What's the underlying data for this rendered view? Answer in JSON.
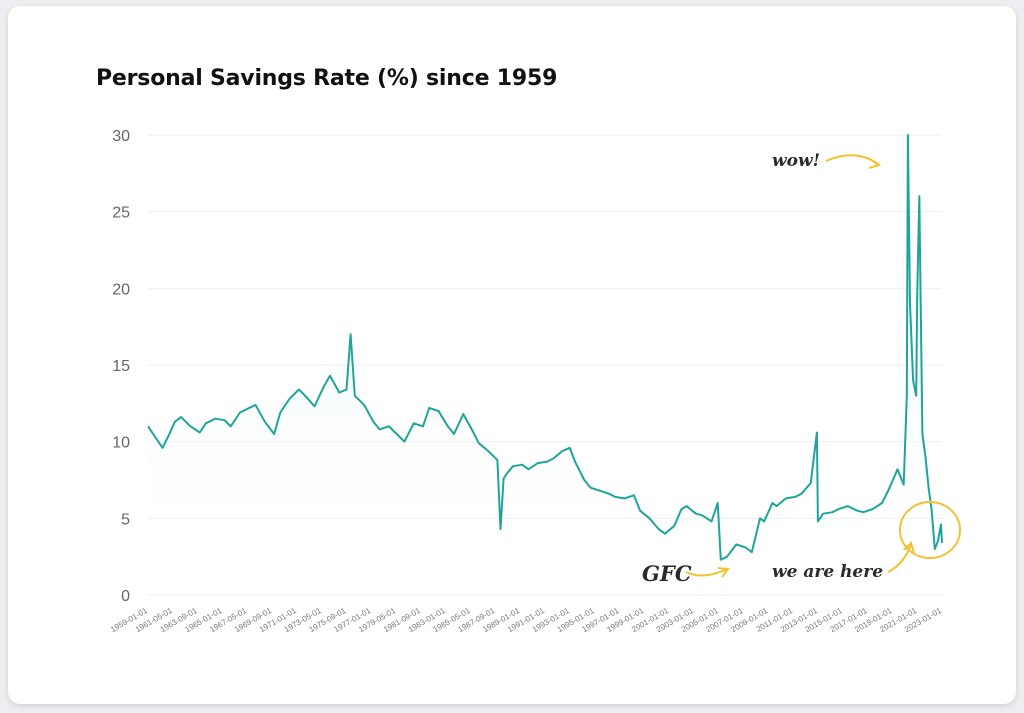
{
  "title": "Personal Savings Rate (%) since 1959",
  "annotations": {
    "peak": "wow!",
    "gfc": "GFC",
    "now": "we are here"
  },
  "colors": {
    "line": "#1fa598",
    "fill_top": "#e0f3f1",
    "grid": "#eeeeee",
    "annotation_arrow": "#f2c233"
  },
  "chart_data": {
    "type": "line",
    "title": "Personal Savings Rate (%) since 1959",
    "xlabel": "",
    "ylabel": "",
    "ylim": [
      0,
      30
    ],
    "yticks": [
      0,
      5,
      10,
      15,
      20,
      25,
      30
    ],
    "xlim": [
      "1959-01-01",
      "2023-01-01"
    ],
    "xtick_labels": [
      "1959-01-01",
      "1961-05-01",
      "1963-09-01",
      "1965-01-01",
      "1967-05-01",
      "1969-09-01",
      "1971-01-01",
      "1973-05-01",
      "1975-09-01",
      "1977-01-01",
      "1979-05-01",
      "1981-09-01",
      "1983-01-01",
      "1985-05-01",
      "1987-09-01",
      "1989-01-01",
      "1991-01-01",
      "1993-01-01",
      "1995-01-01",
      "1997-01-01",
      "1999-01-01",
      "2001-01-01",
      "2003-01-01",
      "2005-01-01",
      "2007-01-01",
      "2009-01-01",
      "2011-01-01",
      "2013-01-01",
      "2015-01-01",
      "2017-01-01",
      "2019-01-01",
      "2021-01-01",
      "2023-01-01"
    ],
    "grid": true,
    "legend": "none",
    "series": [
      {
        "x": [
          "1959-01-01",
          "1959-06-01",
          "1960-03-01",
          "1960-09-01",
          "1961-03-01",
          "1961-09-01",
          "1962-06-01",
          "1963-03-01",
          "1963-09-01",
          "1964-06-01",
          "1965-03-01",
          "1965-09-01",
          "1966-06-01",
          "1967-03-01",
          "1967-09-01",
          "1968-06-01",
          "1969-03-01",
          "1969-09-01",
          "1970-06-01",
          "1971-03-01",
          "1971-09-01",
          "1972-06-01",
          "1973-03-01",
          "1973-09-01",
          "1974-06-01",
          "1975-01-01",
          "1975-05-01",
          "1975-09-01",
          "1976-06-01",
          "1977-03-01",
          "1977-09-01",
          "1978-06-01",
          "1979-03-01",
          "1979-09-01",
          "1980-06-01",
          "1981-03-01",
          "1981-09-01",
          "1982-06-01",
          "1983-03-01",
          "1983-09-01",
          "1984-06-01",
          "1985-03-01",
          "1985-09-01",
          "1986-06-01",
          "1987-03-01",
          "1987-06-01",
          "1987-09-01",
          "1988-01-01",
          "1988-06-01",
          "1989-03-01",
          "1989-09-01",
          "1990-06-01",
          "1991-03-01",
          "1991-09-01",
          "1992-06-01",
          "1993-01-01",
          "1993-06-01",
          "1994-03-01",
          "1994-09-01",
          "1995-06-01",
          "1996-03-01",
          "1996-09-01",
          "1997-06-01",
          "1998-03-01",
          "1998-09-01",
          "1999-06-01",
          "2000-03-01",
          "2000-09-01",
          "2001-06-01",
          "2002-01-01",
          "2002-06-01",
          "2003-03-01",
          "2003-09-01",
          "2004-06-01",
          "2004-12-01",
          "2005-03-01",
          "2005-09-01",
          "2006-06-01",
          "2007-03-01",
          "2007-09-01",
          "2008-05-01",
          "2008-09-01",
          "2009-05-01",
          "2009-09-01",
          "2010-06-01",
          "2011-03-01",
          "2011-09-01",
          "2012-06-01",
          "2012-12-01",
          "2013-01-01",
          "2013-06-01",
          "2014-03-01",
          "2014-09-01",
          "2015-06-01",
          "2016-03-01",
          "2016-09-01",
          "2017-06-01",
          "2018-03-01",
          "2018-09-01",
          "2019-06-01",
          "2019-12-01",
          "2020-03-01",
          "2020-04-01",
          "2020-06-01",
          "2020-09-01",
          "2020-12-01",
          "2021-01-01",
          "2021-03-01",
          "2021-06-01",
          "2021-09-01",
          "2021-12-01",
          "2022-03-01",
          "2022-06-01",
          "2022-09-01",
          "2022-12-01",
          "2023-01-01"
        ],
        "y": [
          11.0,
          10.5,
          9.6,
          10.4,
          11.3,
          11.6,
          11.0,
          10.6,
          11.2,
          11.5,
          11.4,
          11.0,
          11.9,
          12.2,
          12.4,
          11.3,
          10.5,
          11.9,
          12.8,
          13.4,
          13.0,
          12.3,
          13.6,
          14.3,
          13.2,
          13.4,
          17.0,
          13.0,
          12.4,
          11.3,
          10.8,
          11.0,
          10.4,
          10.0,
          11.2,
          11.0,
          12.2,
          12.0,
          11.0,
          10.5,
          11.8,
          10.7,
          9.9,
          9.4,
          8.8,
          4.3,
          7.6,
          8.0,
          8.4,
          8.5,
          8.2,
          8.6,
          8.7,
          8.9,
          9.4,
          9.6,
          8.7,
          7.5,
          7.0,
          6.8,
          6.6,
          6.4,
          6.3,
          6.5,
          5.5,
          5.0,
          4.3,
          4.0,
          4.5,
          5.6,
          5.8,
          5.3,
          5.2,
          4.8,
          6.0,
          2.3,
          2.5,
          3.3,
          3.1,
          2.8,
          5.0,
          4.8,
          6.0,
          5.8,
          6.3,
          6.4,
          6.6,
          7.3,
          10.6,
          4.8,
          5.3,
          5.4,
          5.6,
          5.8,
          5.5,
          5.4,
          5.6,
          6.0,
          6.8,
          8.2,
          7.2,
          13.0,
          30.0,
          19.0,
          14.0,
          13.0,
          19.5,
          26.0,
          10.5,
          9.0,
          7.0,
          5.5,
          3.0,
          3.5,
          4.6,
          3.4
        ]
      }
    ]
  }
}
